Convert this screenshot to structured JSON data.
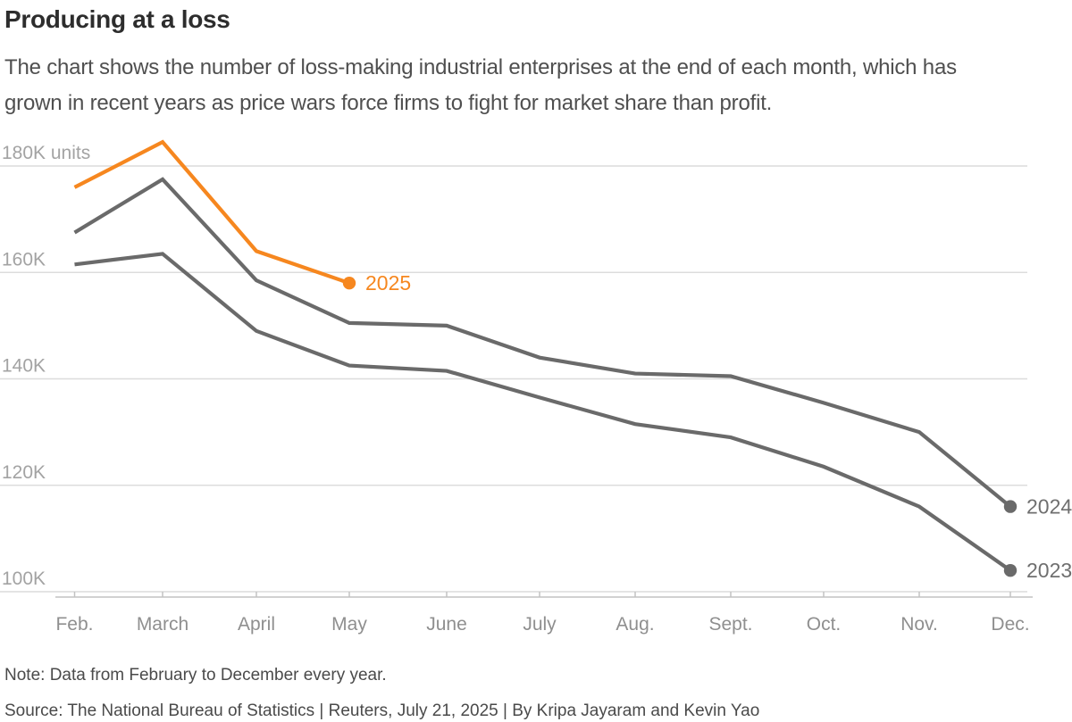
{
  "header": {
    "title": "Producing at a loss",
    "subtitle": "The chart shows the number of loss-making industrial enterprises at the end of each month, which has grown in recent years as price wars force firms to fight for market share than profit."
  },
  "chart_data": {
    "type": "line",
    "title": "Producing at a loss",
    "unit": "thousands of units (K)",
    "categories": [
      "Feb.",
      "March",
      "April",
      "May",
      "June",
      "July",
      "Aug.",
      "Sept.",
      "Oct.",
      "Nov.",
      "Dec."
    ],
    "y_ticks": [
      {
        "label": "180K units",
        "value": 180
      },
      {
        "label": "160K",
        "value": 160
      },
      {
        "label": "140K",
        "value": 140
      },
      {
        "label": "120K",
        "value": 120
      },
      {
        "label": "100K",
        "value": 100
      }
    ],
    "ylim": [
      100,
      186
    ],
    "grid": true,
    "legend_position": "end-of-line labels",
    "series": [
      {
        "name": "2025",
        "color": "#f6871f",
        "label_color": "#f6871f",
        "end_dot": true,
        "values": [
          176,
          184.5,
          164,
          158,
          null,
          null,
          null,
          null,
          null,
          null,
          null
        ]
      },
      {
        "name": "2024",
        "color": "#6a6a6a",
        "label_color": "#6f6f6f",
        "end_dot": true,
        "values": [
          167.5,
          177.5,
          158.5,
          150.5,
          150,
          144,
          141,
          140.5,
          135.5,
          130,
          116
        ]
      },
      {
        "name": "2023",
        "color": "#6a6a6a",
        "label_color": "#6f6f6f",
        "end_dot": true,
        "values": [
          161.5,
          163.5,
          149,
          142.5,
          141.5,
          136.5,
          131.5,
          129,
          123.5,
          116,
          104
        ]
      }
    ]
  },
  "footer": {
    "note": "Note: Data from February to December every year.",
    "source": "Source: The National Bureau of Statistics | Reuters, July 21, 2025 | By Kripa Jayaram and Kevin Yao"
  },
  "colors": {
    "accent": "#f6871f",
    "line_gray": "#6a6a6a",
    "grid_line": "#dcdcdc",
    "axis_line": "#c2c2c2",
    "y_tick_label": "#a3a3a3",
    "x_tick_label": "#8f8f8f",
    "title_text": "#2d2d2d",
    "body_text": "#4f4f4f"
  }
}
